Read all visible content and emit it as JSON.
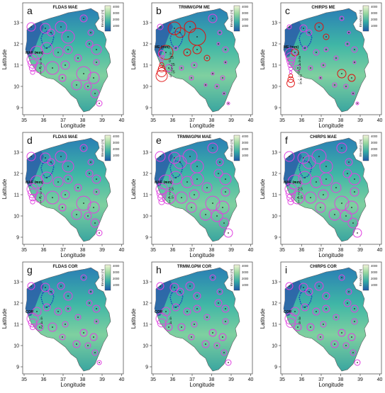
{
  "colors": {
    "positive_circle": "#e040e0",
    "negative_circle": "#e01010",
    "elev_low": "#1f4fa8",
    "elev_mid": "#37b0a8",
    "elev_high": "#e8f0c0"
  },
  "axes": {
    "xlabel": "Longitude",
    "ylabel": "Latitude",
    "xticks": [
      "35",
      "36",
      "37",
      "38",
      "39",
      "40"
    ],
    "yticks": [
      "13",
      "12",
      "11",
      "10",
      "9"
    ]
  },
  "colorbar": {
    "label": "Elevation (m)",
    "ticks": [
      "4000",
      "3000",
      "2000",
      "1000"
    ]
  },
  "panels": [
    {
      "letter": "a",
      "title": "FLDAS MAE",
      "legend_title": "MAE (mm)",
      "legend_entries": [
        {
          "label": "4",
          "sign": "pos",
          "size": 4
        },
        {
          "label": "3",
          "sign": "pos",
          "size": 3
        },
        {
          "label": "2",
          "sign": "pos",
          "size": 2
        },
        {
          "label": "1",
          "sign": "pos",
          "size": 1
        }
      ]
    },
    {
      "letter": "b",
      "title": "TRMM/GPM ME",
      "legend_title": "ME (mm)",
      "legend_entries": [
        {
          "label": ".5",
          "sign": "pos",
          "size": 0.5
        },
        {
          "label": ".25",
          "sign": "pos",
          "size": 0.25
        },
        {
          "label": "0",
          "sign": "pos",
          "size": 0.05
        },
        {
          "label": "-.25",
          "sign": "neg",
          "size": 0.25
        },
        {
          "label": "-.5",
          "sign": "neg",
          "size": 0.5
        },
        {
          "label": "-.75",
          "sign": "neg",
          "size": 0.75
        },
        {
          "label": "-1",
          "sign": "neg",
          "size": 1
        }
      ]
    },
    {
      "letter": "c",
      "title": "CHIRPS ME",
      "legend_title": "ME (mm)",
      "legend_entries": [
        {
          "label": "1",
          "sign": "pos",
          "size": 1
        },
        {
          "label": ".8",
          "sign": "pos",
          "size": 0.8
        },
        {
          "label": ".6",
          "sign": "pos",
          "size": 0.6
        },
        {
          "label": ".4",
          "sign": "pos",
          "size": 0.4
        },
        {
          "label": ".2",
          "sign": "pos",
          "size": 0.2
        },
        {
          "label": "0",
          "sign": "pos",
          "size": 0.05
        },
        {
          "label": "-.2",
          "sign": "neg",
          "size": 0.2
        },
        {
          "label": "-.4",
          "sign": "neg",
          "size": 0.4
        },
        {
          "label": "-.6",
          "sign": "neg",
          "size": 0.6
        }
      ]
    },
    {
      "letter": "d",
      "title": "FLDAS MAE",
      "legend_title": "MAE (mm)",
      "legend_entries": [
        {
          "label": "4",
          "sign": "pos",
          "size": 4
        },
        {
          "label": "3",
          "sign": "pos",
          "size": 3
        },
        {
          "label": "2",
          "sign": "pos",
          "size": 2
        },
        {
          "label": "1",
          "sign": "pos",
          "size": 1
        }
      ]
    },
    {
      "letter": "e",
      "title": "TRMM/GPM MAE",
      "legend_title": "MAE (mm)",
      "legend_entries": [
        {
          "label": "2.5",
          "sign": "pos",
          "size": 2.5
        },
        {
          "label": "2",
          "sign": "pos",
          "size": 2
        },
        {
          "label": "1.5",
          "sign": "pos",
          "size": 1.5
        },
        {
          "label": "1",
          "sign": "pos",
          "size": 1
        }
      ]
    },
    {
      "letter": "f",
      "title": "CHIRPS MAE",
      "legend_title": "MAE (mm)",
      "legend_entries": [
        {
          "label": "2.5",
          "sign": "pos",
          "size": 2.5
        },
        {
          "label": "2",
          "sign": "pos",
          "size": 2
        },
        {
          "label": "1.5",
          "sign": "pos",
          "size": 1.5
        },
        {
          "label": "1",
          "sign": "pos",
          "size": 1
        }
      ]
    },
    {
      "letter": "g",
      "title": "FLDAS COR",
      "legend_title": "COR",
      "legend_entries": [
        {
          "label": ".6",
          "sign": "pos",
          "size": 0.6
        },
        {
          "label": ".4",
          "sign": "pos",
          "size": 0.4
        },
        {
          "label": ".2",
          "sign": "pos",
          "size": 0.2
        }
      ]
    },
    {
      "letter": "h",
      "title": "TRMM.GPM COR",
      "legend_title": "COR",
      "legend_entries": [
        {
          "label": ".6",
          "sign": "pos",
          "size": 0.6
        },
        {
          "label": ".4",
          "sign": "pos",
          "size": 0.4
        }
      ]
    },
    {
      "letter": "i",
      "title": "CHIRPS COR",
      "legend_title": "COR",
      "legend_entries": [
        {
          "label": ".8",
          "sign": "pos",
          "size": 0.8
        },
        {
          "label": ".6",
          "sign": "pos",
          "size": 0.6
        }
      ]
    }
  ]
}
